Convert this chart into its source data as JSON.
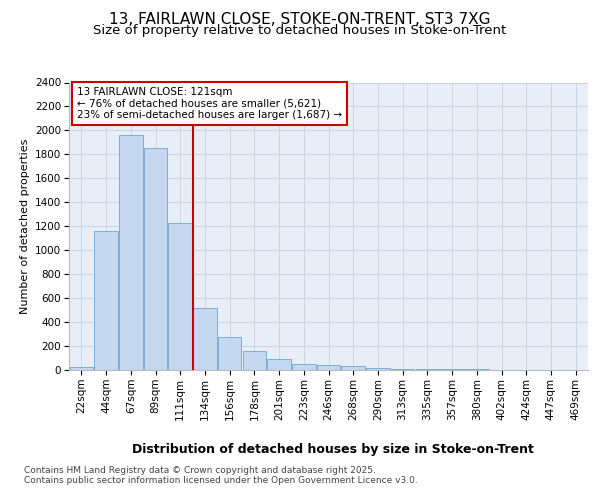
{
  "title_line1": "13, FAIRLAWN CLOSE, STOKE-ON-TRENT, ST3 7XG",
  "title_line2": "Size of property relative to detached houses in Stoke-on-Trent",
  "xlabel": "Distribution of detached houses by size in Stoke-on-Trent",
  "ylabel": "Number of detached properties",
  "categories": [
    "22sqm",
    "44sqm",
    "67sqm",
    "89sqm",
    "111sqm",
    "134sqm",
    "156sqm",
    "178sqm",
    "201sqm",
    "223sqm",
    "246sqm",
    "268sqm",
    "290sqm",
    "313sqm",
    "335sqm",
    "357sqm",
    "380sqm",
    "402sqm",
    "424sqm",
    "447sqm",
    "469sqm"
  ],
  "values": [
    25,
    1160,
    1960,
    1850,
    1230,
    520,
    275,
    155,
    90,
    48,
    40,
    30,
    20,
    12,
    5,
    5,
    5,
    2,
    2,
    2,
    2
  ],
  "bar_color": "#c5d8f0",
  "bar_edge_color": "#7aafd4",
  "grid_color": "#c8d4e8",
  "background_color": "#e8eef8",
  "vline_color": "#cc0000",
  "vline_index": 5,
  "annotation_text": "13 FAIRLAWN CLOSE: 121sqm\n← 76% of detached houses are smaller (5,621)\n23% of semi-detached houses are larger (1,687) →",
  "annotation_box_color": "#cc0000",
  "ylim": [
    0,
    2400
  ],
  "yticks": [
    0,
    200,
    400,
    600,
    800,
    1000,
    1200,
    1400,
    1600,
    1800,
    2000,
    2200,
    2400
  ],
  "footnote1": "Contains HM Land Registry data © Crown copyright and database right 2025.",
  "footnote2": "Contains public sector information licensed under the Open Government Licence v3.0.",
  "title_fontsize": 11,
  "subtitle_fontsize": 9.5,
  "xlabel_fontsize": 9,
  "ylabel_fontsize": 8,
  "tick_fontsize": 7.5,
  "annotation_fontsize": 7.5,
  "footnote_fontsize": 6.5
}
